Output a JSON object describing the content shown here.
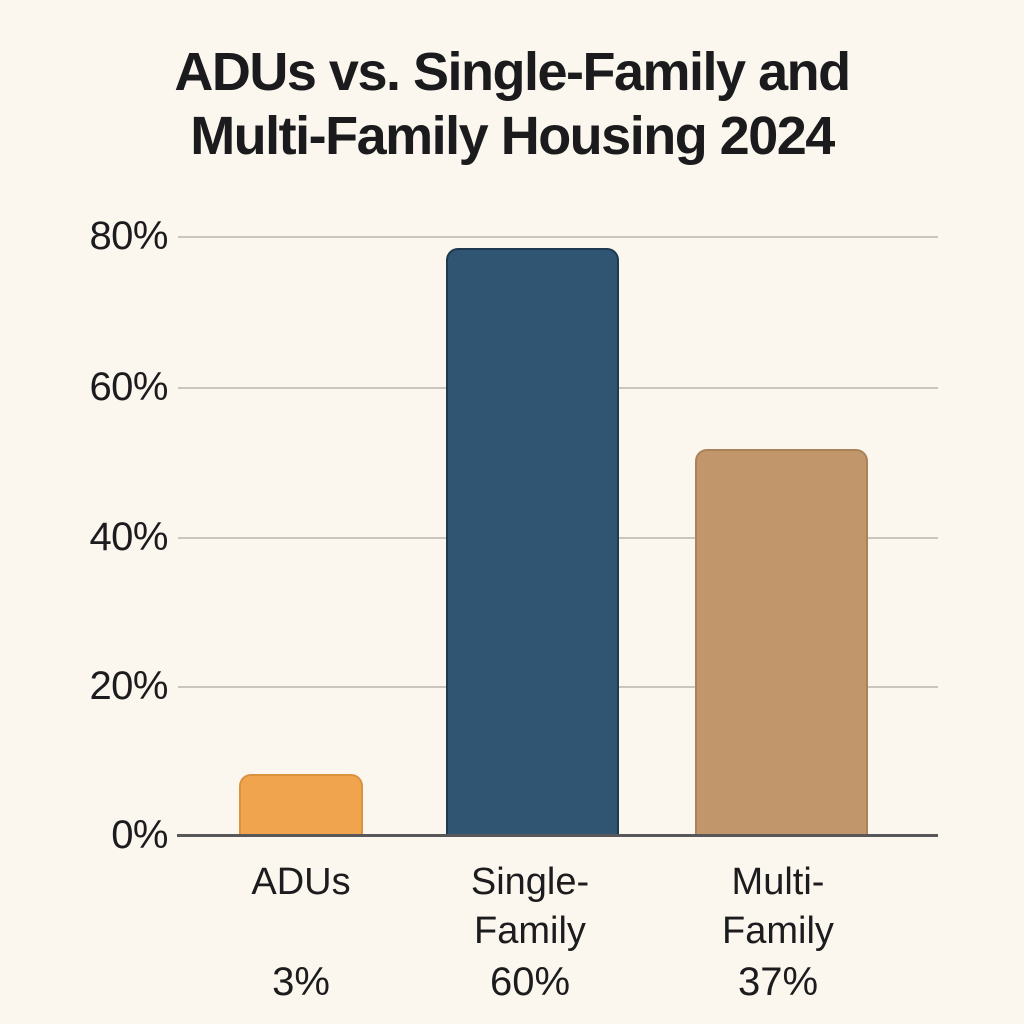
{
  "page": {
    "background": "#fbf7ef",
    "text_color": "#1c1c1e"
  },
  "header": {
    "title_lines": [
      "ADUs vs. Single-Family and",
      "Multi-Family Housing 2024"
    ]
  },
  "chart_data": {
    "type": "bar",
    "title": "ADUs vs. Single-Family and Multi-Family Housing 2024",
    "categories": [
      "ADUs",
      "Single-Family",
      "Multi-Family"
    ],
    "values": [
      3,
      60,
      37
    ],
    "value_labels": [
      "3%",
      "60%",
      "37%"
    ],
    "bar_colors": [
      "#f0a44e",
      "#2f5573",
      "#c2966b"
    ],
    "bar_border_colors": [
      "#da923f",
      "#1f3a50",
      "#ab835a"
    ],
    "drawn_heights_pct": [
      8.3,
      78.5,
      51.7
    ],
    "xlabel": "",
    "ylabel": "",
    "ylim": [
      0,
      85
    ],
    "yticks": [
      "0%",
      "20%",
      "40%",
      "60%",
      "80%"
    ],
    "grid": true,
    "legend": "none",
    "colors": {
      "gridline": "#c9c6c0",
      "axis_line": "#58585a"
    }
  }
}
